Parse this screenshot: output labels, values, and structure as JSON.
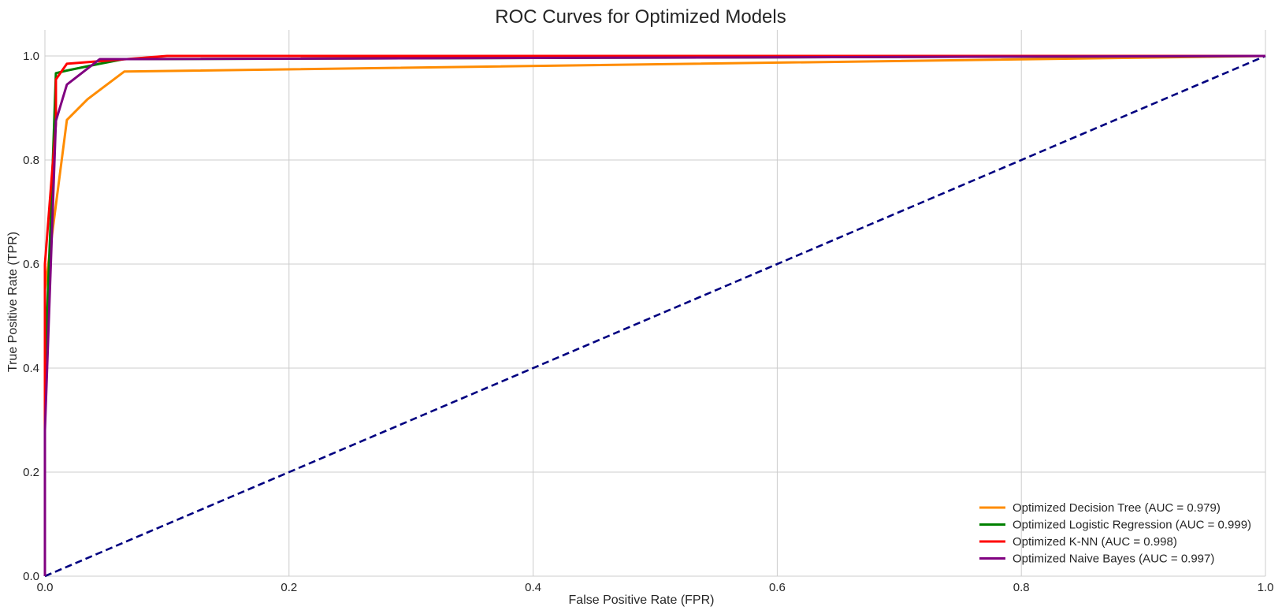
{
  "chart_data": {
    "type": "line",
    "title": "ROC Curves for Optimized Models",
    "xlabel": "False Positive Rate (FPR)",
    "ylabel": "True Positive Rate (TPR)",
    "xlim": [
      0.0,
      1.0
    ],
    "ylim": [
      0.0,
      1.05
    ],
    "xticks": [
      "0.0",
      "0.2",
      "0.4",
      "0.6",
      "0.8",
      "1.0"
    ],
    "yticks": [
      "0.0",
      "0.2",
      "0.4",
      "0.6",
      "0.8",
      "1.0"
    ],
    "grid": true,
    "legend_position": "lower-right",
    "series": [
      {
        "name": "Optimized Decision Tree (AUC = 0.979)",
        "color": "#ff8c00",
        "x": [
          0.0,
          0.0,
          0.018,
          0.035,
          0.065,
          1.0
        ],
        "y": [
          0.0,
          0.55,
          0.877,
          0.917,
          0.97,
          1.0
        ]
      },
      {
        "name": "Optimized Logistic Regression (AUC = 0.999)",
        "color": "#008000",
        "x": [
          0.0,
          0.0,
          0.005,
          0.009,
          0.018,
          0.045,
          0.065,
          1.0
        ],
        "y": [
          0.0,
          0.4,
          0.7,
          0.967,
          0.972,
          0.985,
          0.994,
          1.0
        ]
      },
      {
        "name": "Optimized K-NN (AUC = 0.998)",
        "color": "#ff0000",
        "x": [
          0.0,
          0.0,
          0.009,
          0.009,
          0.018,
          0.1,
          1.0
        ],
        "y": [
          0.0,
          0.6,
          0.87,
          0.955,
          0.985,
          1.0,
          1.0
        ]
      },
      {
        "name": "Optimized Naive Bayes (AUC = 0.997)",
        "color": "#800080",
        "x": [
          0.0,
          0.0,
          0.009,
          0.018,
          0.045,
          0.065,
          1.0
        ],
        "y": [
          0.0,
          0.28,
          0.875,
          0.945,
          0.994,
          0.994,
          1.0
        ]
      }
    ],
    "reference_line": {
      "color": "#000080",
      "style": "dashed",
      "x": [
        0.0,
        1.0
      ],
      "y": [
        0.0,
        1.0
      ]
    }
  }
}
